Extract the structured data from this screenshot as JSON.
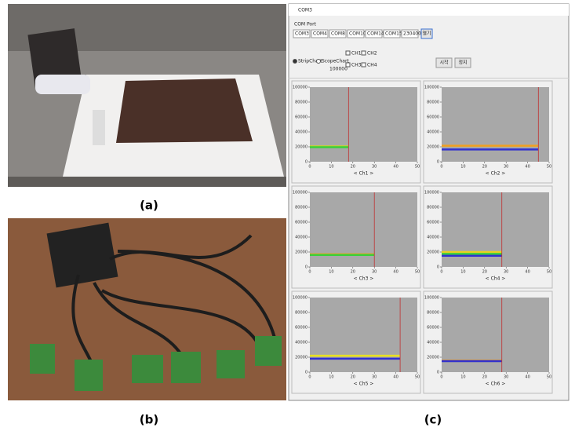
{
  "figure": {
    "labels": [
      "(a)",
      "(b)",
      "(c)"
    ]
  },
  "ui": {
    "window_title": "COM3",
    "port_label": "COM Port",
    "ports": [
      "COM3",
      "COM4",
      "COM8",
      "COM10",
      "COM14",
      "COM15",
      "230400"
    ],
    "open_button": "열기",
    "modes": [
      "StripChart",
      "ScopeChart"
    ],
    "channels": [
      "CH1",
      "CH2",
      "CH3",
      "CH4"
    ],
    "period": "100000",
    "buttons": [
      "시작",
      "정지"
    ]
  },
  "charts": [
    {
      "type": "line",
      "label": "< Ch1 >",
      "ylim": [
        0,
        100000
      ],
      "yticks": [
        0,
        20000,
        40000,
        60000,
        80000,
        100000
      ],
      "xlim": [
        0,
        50
      ],
      "xticks": [
        0,
        10,
        20,
        30,
        40,
        50
      ],
      "cursor": 18,
      "series": [
        {
          "color": "#c8d820",
          "values": [
            20500,
            20500
          ]
        },
        {
          "color": "#3ad03a",
          "values": [
            19500,
            19500
          ]
        }
      ]
    },
    {
      "type": "line",
      "label": "< Ch2 >",
      "ylim": [
        0,
        100000
      ],
      "yticks": [
        0,
        20000,
        40000,
        60000,
        80000,
        100000
      ],
      "xlim": [
        0,
        50
      ],
      "xticks": [
        0,
        10,
        20,
        30,
        40,
        50
      ],
      "cursor": 45,
      "series": [
        {
          "color": "#f0a020",
          "values": [
            21500,
            21500
          ]
        },
        {
          "color": "#3030d0",
          "values": [
            16500,
            16500
          ]
        }
      ]
    },
    {
      "type": "line",
      "label": "< Ch3 >",
      "ylim": [
        0,
        100000
      ],
      "yticks": [
        0,
        20000,
        40000,
        60000,
        80000,
        100000
      ],
      "xlim": [
        0,
        50
      ],
      "xticks": [
        0,
        10,
        20,
        30,
        40,
        50
      ],
      "cursor": 30,
      "series": [
        {
          "color": "#f0a020",
          "values": [
            17000,
            17000
          ]
        },
        {
          "color": "#3ad03a",
          "values": [
            16000,
            16000
          ]
        }
      ]
    },
    {
      "type": "line",
      "label": "< Ch4 >",
      "ylim": [
        0,
        100000
      ],
      "yticks": [
        0,
        20000,
        40000,
        60000,
        80000,
        100000
      ],
      "xlim": [
        0,
        50
      ],
      "xticks": [
        0,
        10,
        20,
        30,
        40,
        50
      ],
      "cursor": 28,
      "series": [
        {
          "color": "#e8d020",
          "values": [
            20000,
            20000
          ]
        },
        {
          "color": "#3ad03a",
          "values": [
            17500,
            17500
          ]
        },
        {
          "color": "#3030d0",
          "values": [
            15000,
            15000
          ]
        }
      ]
    },
    {
      "type": "line",
      "label": "< Ch5 >",
      "ylim": [
        0,
        100000
      ],
      "yticks": [
        0,
        20000,
        40000,
        60000,
        80000,
        100000
      ],
      "xlim": [
        0,
        50
      ],
      "xticks": [
        0,
        10,
        20,
        30,
        40,
        50
      ],
      "cursor": 42,
      "series": [
        {
          "color": "#e8e020",
          "values": [
            22000,
            22000
          ]
        },
        {
          "color": "#3030d0",
          "values": [
            18000,
            18000
          ]
        }
      ]
    },
    {
      "type": "line",
      "label": "< Ch6 >",
      "ylim": [
        0,
        100000
      ],
      "yticks": [
        0,
        20000,
        40000,
        60000,
        80000,
        100000
      ],
      "xlim": [
        0,
        50
      ],
      "xticks": [
        0,
        10,
        20,
        30,
        40,
        50
      ],
      "cursor": 28,
      "series": [
        {
          "color": "#f0a020",
          "values": [
            15500,
            15500
          ]
        },
        {
          "color": "#3030d0",
          "values": [
            14800,
            14800
          ]
        }
      ]
    }
  ]
}
